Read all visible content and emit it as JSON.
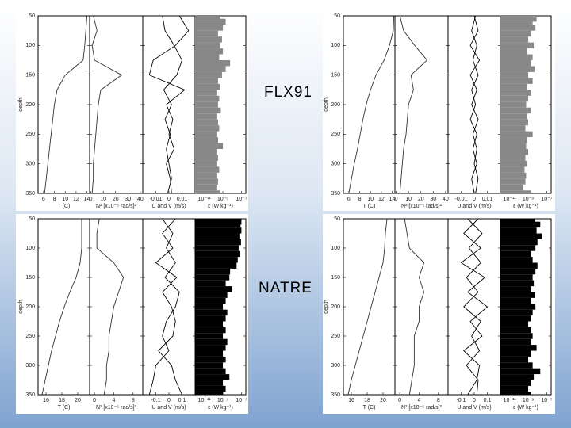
{
  "labels": [
    {
      "text": "FLX91"
    },
    {
      "text": "NATRE"
    }
  ],
  "panels": [
    {
      "ylabel": "depth",
      "ylim": [
        50,
        350
      ],
      "yticks": [
        50,
        100,
        150,
        200,
        250,
        300,
        350
      ],
      "depth": [
        50,
        75,
        100,
        125,
        150,
        175,
        200,
        225,
        250,
        275,
        300,
        325,
        350
      ],
      "profiles": [
        {
          "xlabel": "T (C)",
          "xlim": [
            5,
            14.5
          ],
          "xticks": [
            6,
            8,
            10,
            12,
            14
          ],
          "series": [
            {
              "color": "#333",
              "values": [
                14,
                13.8,
                13.6,
                13.3,
                10,
                8.5,
                8,
                7.7,
                7.4,
                7.1,
                6.8,
                6.5,
                6.2
              ]
            }
          ]
        },
        {
          "xlabel": "N² [x10⁻⁵ rad/s]²",
          "xlim": [
            -1,
            42
          ],
          "xticks": [
            0,
            10,
            20,
            30,
            40
          ],
          "series": [
            {
              "color": "#333",
              "values": [
                2,
                5,
                1,
                3,
                25,
                8,
                6,
                5,
                4,
                3,
                2,
                2,
                1
              ]
            }
          ]
        },
        {
          "xlabel": "U and V (m/s)",
          "xlim": [
            -0.02,
            0.02
          ],
          "xticks": [
            -0.01,
            0,
            0.01
          ],
          "series": [
            {
              "color": "#000",
              "values": [
                0.008,
                0.015,
                0.005,
                -0.012,
                -0.015,
                0.012,
                -0.002,
                0.003,
                0,
                0.004,
                -0.002,
                0.001,
                0.002
              ]
            },
            {
              "color": "#000",
              "values": [
                -0.005,
                -0.003,
                0.004,
                0.01,
                0.006,
                -0.004,
                0.002,
                -0.003,
                0.001,
                -0.002,
                0,
                0.002,
                -0.001
              ]
            }
          ]
        },
        {
          "xlabel": "ε (W kg⁻¹)",
          "log": true,
          "xlim": [
            1e-12,
            3e-07
          ],
          "xticks": [
            {
              "value": 1e-11,
              "label": "10⁻¹¹"
            },
            {
              "value": 1e-09,
              "label": "10⁻⁹"
            },
            {
              "value": 1e-07,
              "label": "10⁻⁷"
            }
          ],
          "color": "#888",
          "depth": [
            50,
            60,
            70,
            80,
            90,
            100,
            110,
            120,
            130,
            140,
            150,
            160,
            170,
            180,
            190,
            200,
            210,
            220,
            230,
            240,
            250,
            260,
            270,
            280,
            290,
            300,
            310,
            320,
            330,
            340,
            350
          ],
          "values": [
            5e-10,
            2e-09,
            1e-09,
            3e-10,
            8e-10,
            5e-10,
            1e-09,
            4e-10,
            6e-09,
            2e-09,
            8e-10,
            3e-10,
            5e-10,
            2e-10,
            4e-10,
            3e-10,
            6e-10,
            2e-10,
            3e-10,
            4e-10,
            2e-10,
            3e-10,
            1e-09,
            2e-10,
            3e-10,
            2e-10,
            4e-10,
            2e-10,
            3e-10,
            2e-10,
            5e-10
          ]
        }
      ]
    },
    {
      "ylabel": "depth",
      "ylim": [
        50,
        350
      ],
      "yticks": [
        50,
        100,
        150,
        200,
        250,
        300,
        350
      ],
      "depth": [
        50,
        75,
        100,
        125,
        150,
        175,
        200,
        225,
        250,
        275,
        300,
        325,
        350
      ],
      "profiles": [
        {
          "xlabel": "T (C)",
          "xlim": [
            5,
            14.5
          ],
          "xticks": [
            6,
            8,
            10,
            12,
            14
          ],
          "series": [
            {
              "color": "#333",
              "values": [
                14.3,
                14.2,
                13.5,
                12.5,
                11,
                10,
                9.2,
                8.6,
                8.1,
                7.6,
                7,
                6.5,
                6
              ]
            }
          ]
        },
        {
          "xlabel": "N² [x10⁻⁵ rad/s]²",
          "xlim": [
            -1,
            42
          ],
          "xticks": [
            0,
            10,
            20,
            30,
            40
          ],
          "series": [
            {
              "color": "#333",
              "values": [
                3,
                6,
                15,
                25,
                12,
                14,
                10,
                9,
                8,
                6,
                5,
                4,
                3
              ]
            }
          ]
        },
        {
          "xlabel": "U and V (m/s)",
          "xlim": [
            -0.02,
            0.02
          ],
          "xticks": [
            -0.01,
            0,
            0.01
          ],
          "series": [
            {
              "color": "#000",
              "values": [
                0,
                0.003,
                -0.003,
                0.004,
                -0.003,
                0.002,
                -0.002,
                0.003,
                -0.001,
                0.002,
                0,
                0.003,
                0.001
              ]
            },
            {
              "color": "#000",
              "values": [
                0.001,
                -0.002,
                0.002,
                -0.001,
                0.003,
                -0.002,
                0.001,
                -0.003,
                0.002,
                -0.001,
                0.002,
                -0.002,
                0
              ]
            }
          ]
        },
        {
          "xlabel": "ε (W kg⁻¹)",
          "log": true,
          "xlim": [
            1e-12,
            3e-07
          ],
          "xticks": [
            {
              "value": 1e-11,
              "label": "10⁻¹¹"
            },
            {
              "value": 1e-09,
              "label": "10⁻⁹"
            },
            {
              "value": 1e-07,
              "label": "10⁻⁷"
            }
          ],
          "color": "#888",
          "depth": [
            50,
            60,
            70,
            80,
            90,
            100,
            110,
            120,
            130,
            140,
            150,
            160,
            170,
            180,
            190,
            200,
            210,
            220,
            230,
            240,
            250,
            260,
            270,
            280,
            290,
            300,
            310,
            320,
            330,
            340,
            350
          ],
          "values": [
            8e-09,
            3e-09,
            6e-09,
            2e-09,
            1e-09,
            4e-09,
            8e-10,
            3e-09,
            2e-09,
            5e-09,
            1e-09,
            3e-09,
            8e-10,
            2e-09,
            1e-09,
            6e-10,
            2e-09,
            8e-10,
            1e-09,
            5e-10,
            3e-09,
            8e-10,
            6e-10,
            1e-09,
            5e-10,
            7e-10,
            4e-10,
            6e-10,
            5e-10,
            3e-10,
            2e-09
          ]
        }
      ]
    },
    {
      "ylabel": "depth",
      "ylim": [
        50,
        350
      ],
      "yticks": [
        50,
        100,
        150,
        200,
        250,
        300,
        350
      ],
      "depth": [
        50,
        75,
        100,
        125,
        150,
        175,
        200,
        225,
        250,
        275,
        300,
        325,
        350
      ],
      "profiles": [
        {
          "xlabel": "T (C)",
          "xlim": [
            15,
            21.5
          ],
          "xticks": [
            16,
            18,
            20
          ],
          "series": [
            {
              "color": "#333",
              "values": [
                20.5,
                20.5,
                20.5,
                20.3,
                19.8,
                19,
                18.3,
                17.7,
                17.2,
                16.7,
                16.3,
                15.9,
                15.5
              ]
            }
          ]
        },
        {
          "xlabel": "N² [x10⁻⁵ rad/s]²",
          "xlim": [
            -1,
            10
          ],
          "xticks": [
            0,
            4,
            8
          ],
          "series": [
            {
              "color": "#333",
              "values": [
                1,
                0.5,
                0.5,
                4,
                6,
                5,
                4,
                3.5,
                3,
                3,
                2.5,
                2.5,
                2
              ]
            }
          ]
        },
        {
          "xlabel": "U and V (m/s)",
          "xlim": [
            -0.2,
            0.2
          ],
          "xticks": [
            -0.1,
            0,
            0.1
          ],
          "series": [
            {
              "color": "#000",
              "values": [
                0.05,
                -0.05,
                0.03,
                -0.1,
                0.06,
                -0.05,
                0.02,
                0.05,
                0.03,
                -0.08,
                0.02,
                0.05,
                0.1
              ]
            },
            {
              "color": "#000",
              "values": [
                -0.05,
                0.03,
                -0.02,
                0.05,
                -0.03,
                0.08,
                0.05,
                -0.02,
                -0.05,
                0,
                -0.1,
                -0.12,
                -0.15
              ]
            }
          ]
        },
        {
          "xlabel": "ε (W kg⁻¹)",
          "log": true,
          "xlim": [
            1e-12,
            3e-07
          ],
          "xticks": [
            {
              "value": 1e-11,
              "label": "10⁻¹¹"
            },
            {
              "value": 1e-09,
              "label": "10⁻⁹"
            },
            {
              "value": 1e-07,
              "label": "10⁻⁷"
            }
          ],
          "color": "#000",
          "depth": [
            50,
            60,
            70,
            80,
            90,
            100,
            110,
            120,
            130,
            140,
            150,
            160,
            170,
            180,
            190,
            200,
            210,
            220,
            230,
            240,
            250,
            260,
            270,
            280,
            290,
            300,
            310,
            320,
            330,
            340,
            350
          ],
          "values": [
            1e-07,
            8e-08,
            1e-07,
            6e-08,
            9e-08,
            5e-08,
            7e-08,
            4e-08,
            3e-08,
            6e-09,
            5e-09,
            2e-09,
            1e-08,
            3e-09,
            2e-09,
            1e-09,
            3e-09,
            2e-09,
            1e-09,
            2e-09,
            1e-09,
            3e-09,
            2e-09,
            1e-09,
            2e-09,
            1e-09,
            2e-09,
            5e-09,
            1e-09,
            2e-09,
            1e-09
          ]
        }
      ]
    },
    {
      "ylabel": "depth",
      "ylim": [
        50,
        350
      ],
      "yticks": [
        50,
        100,
        150,
        200,
        250,
        300,
        350
      ],
      "depth": [
        50,
        75,
        100,
        125,
        150,
        175,
        200,
        225,
        250,
        275,
        300,
        325,
        350
      ],
      "profiles": [
        {
          "xlabel": "T (C)",
          "xlim": [
            15,
            21.5
          ],
          "xticks": [
            16,
            18,
            20
          ],
          "series": [
            {
              "color": "#333",
              "values": [
                20.5,
                20.3,
                20.2,
                20,
                19.5,
                19,
                18.5,
                18,
                17.5,
                17,
                16.5,
                16,
                15.6
              ]
            }
          ]
        },
        {
          "xlabel": "N² [x10⁻⁵ rad/s]²",
          "xlim": [
            -1,
            10
          ],
          "xticks": [
            0,
            4,
            8
          ],
          "series": [
            {
              "color": "#333",
              "values": [
                1,
                1.5,
                2,
                5,
                4,
                5,
                4,
                4,
                3,
                3,
                3,
                2.5,
                2
              ]
            }
          ]
        },
        {
          "xlabel": "U and V (m/s)",
          "xlim": [
            -0.2,
            0.2
          ],
          "xticks": [
            -0.1,
            0,
            0.1
          ],
          "series": [
            {
              "color": "#000",
              "values": [
                0.03,
                -0.08,
                0.05,
                -0.1,
                0.08,
                -0.05,
                0.1,
                -0.03,
                0.06,
                -0.08,
                0.04,
                0.02,
                -0.05
              ]
            },
            {
              "color": "#000",
              "values": [
                -0.05,
                0.06,
                -0.04,
                0.05,
                -0.06,
                0.03,
                -0.08,
                0.05,
                -0.02,
                0.04,
                -0.06,
                0.03,
                0.02
              ]
            }
          ]
        },
        {
          "xlabel": "ε (W kg⁻¹)",
          "log": true,
          "xlim": [
            1e-12,
            3e-07
          ],
          "xticks": [
            {
              "value": 1e-11,
              "label": "10⁻¹¹"
            },
            {
              "value": 1e-09,
              "label": "10⁻⁹"
            },
            {
              "value": 1e-07,
              "label": "10⁻⁷"
            }
          ],
          "color": "#000",
          "depth": [
            50,
            60,
            70,
            80,
            90,
            100,
            110,
            120,
            130,
            140,
            150,
            160,
            170,
            180,
            190,
            200,
            210,
            220,
            230,
            240,
            250,
            260,
            270,
            280,
            290,
            300,
            310,
            320,
            330,
            340,
            350
          ],
          "values": [
            5e-09,
            2e-08,
            8e-09,
            3e-08,
            1e-08,
            6e-09,
            2e-09,
            3e-09,
            1e-08,
            6e-09,
            3e-09,
            4e-09,
            2e-09,
            5e-09,
            2e-09,
            6e-09,
            3e-09,
            2e-09,
            1e-09,
            2e-09,
            3e-09,
            2e-09,
            8e-09,
            2e-09,
            1e-09,
            3e-09,
            2e-08,
            4e-09,
            2e-09,
            1e-09,
            2e-09
          ]
        }
      ]
    }
  ]
}
